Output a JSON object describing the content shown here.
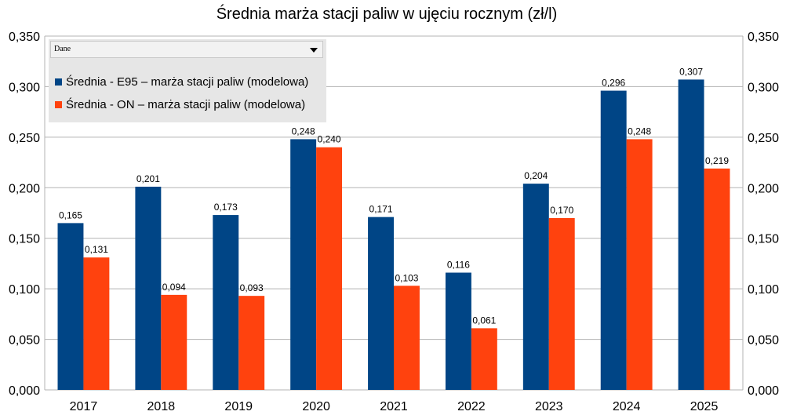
{
  "chart_data": {
    "type": "bar",
    "title": "Średnia marża stacji paliw w ujęciu rocznym (zł/l)",
    "categories": [
      "2017",
      "2018",
      "2019",
      "2020",
      "2021",
      "2022",
      "2023",
      "2024",
      "2025"
    ],
    "series": [
      {
        "name": "Średnia - E95 – marża stacji paliw (modelowa)",
        "color": "#004586",
        "values": [
          0.165,
          0.201,
          0.173,
          0.248,
          0.171,
          0.116,
          0.204,
          0.296,
          0.307
        ],
        "value_labels": [
          "0,165",
          "0,201",
          "0,173",
          "0,248",
          "0,171",
          "0,116",
          "0,204",
          "0,296",
          "0,307"
        ]
      },
      {
        "name": "Średnia - ON – marża stacji paliw (modelowa)",
        "color": "#ff420e",
        "values": [
          0.131,
          0.094,
          0.093,
          0.24,
          0.103,
          0.061,
          0.17,
          0.248,
          0.219
        ],
        "value_labels": [
          "0,131",
          "0,094",
          "0,093",
          "0,240",
          "0,103",
          "0,061",
          "0,170",
          "0,248",
          "0,219"
        ]
      }
    ],
    "ylim": [
      0,
      0.35
    ],
    "y_ticks": [
      0,
      0.05,
      0.1,
      0.15,
      0.2,
      0.25,
      0.3,
      0.35
    ],
    "y_tick_labels": [
      "0,000",
      "0,050",
      "0,100",
      "0,150",
      "0,200",
      "0,250",
      "0,300",
      "0,350"
    ],
    "secondary_y_axis": true,
    "grid": true,
    "grid_color": "#b3b3b3",
    "legend_position": "top-left",
    "legend_header": "Dane",
    "xlabel": "",
    "ylabel": ""
  }
}
